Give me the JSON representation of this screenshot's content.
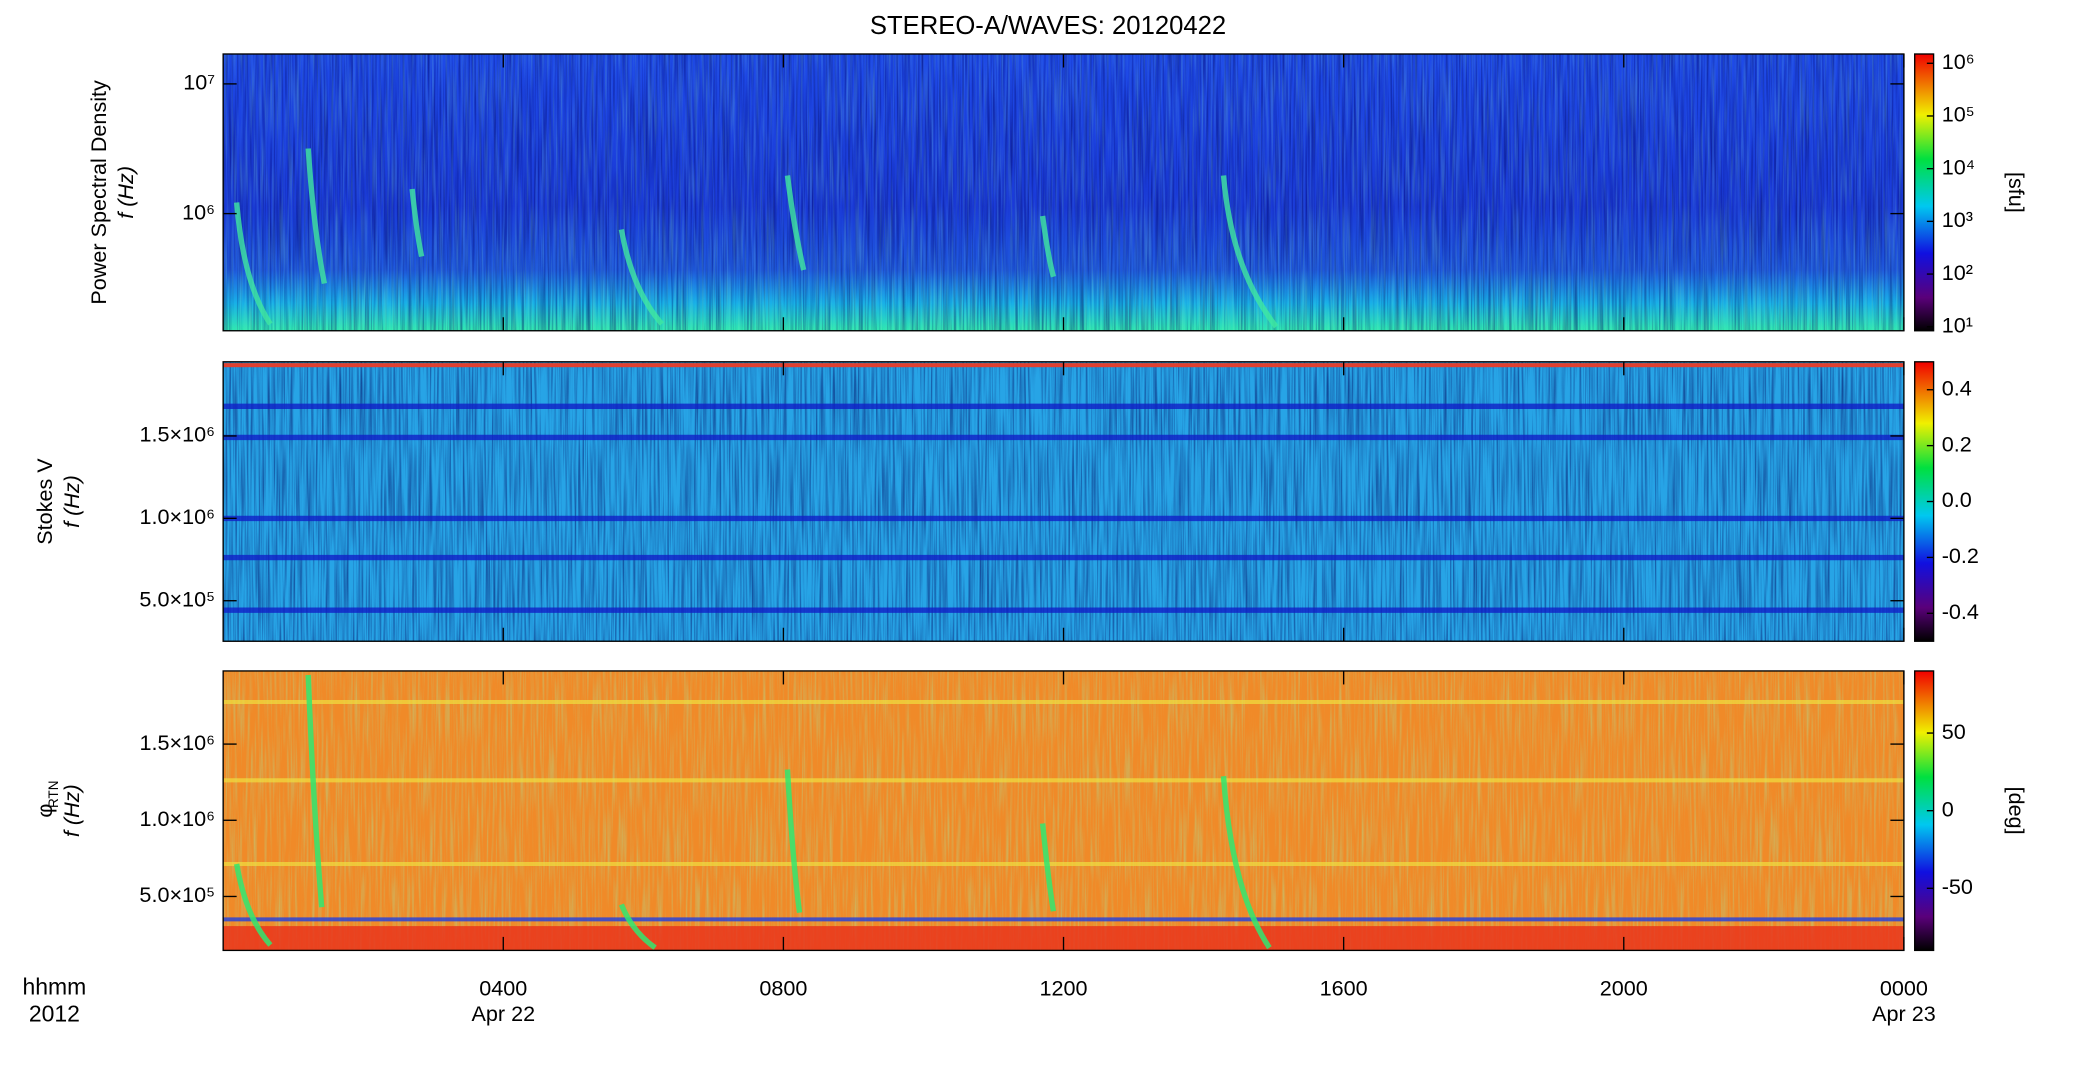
{
  "chart_data": [
    {
      "type": "spectrogram",
      "title": "STEREO-A/WAVES: 20120422",
      "y_label": "Power Spectral Density",
      "y_label_2": "f (Hz)",
      "log_y": true,
      "ylim": [
        125000,
        17000000
      ],
      "yticks": [
        {
          "value": 1000000,
          "label": "10⁶"
        },
        {
          "value": 10000000,
          "label": "10⁷"
        }
      ],
      "colorbar": {
        "log": true,
        "lim": [
          8.4,
          1500000
        ],
        "label": "[sfu]",
        "ticks": [
          {
            "value": 10,
            "label": "10¹"
          },
          {
            "value": 100,
            "label": "10²"
          },
          {
            "value": 1000,
            "label": "10³"
          },
          {
            "value": 10000,
            "label": "10⁴"
          },
          {
            "value": 100000,
            "label": "10⁵"
          },
          {
            "value": 1000000,
            "label": "10⁶"
          }
        ]
      }
    },
    {
      "type": "spectrogram",
      "y_label": "Stokes V",
      "y_label_2": "f (Hz)",
      "log_y": false,
      "ylim": [
        254000,
        1950000
      ],
      "yticks": [
        {
          "value": 500000,
          "label": "5.0×10⁵"
        },
        {
          "value": 1000000,
          "label": "1.0×10⁶"
        },
        {
          "value": 1500000,
          "label": "1.5×10⁶"
        }
      ],
      "colorbar": {
        "log": false,
        "lim": [
          -0.5,
          0.5
        ],
        "ticks": [
          {
            "value": -0.4,
            "label": "-0.4"
          },
          {
            "value": -0.2,
            "label": "-0.2"
          },
          {
            "value": 0,
            "label": "0.0"
          },
          {
            "value": 0.2,
            "label": "0.2"
          },
          {
            "value": 0.4,
            "label": "0.4"
          }
        ]
      }
    },
    {
      "type": "spectrogram",
      "y_label": "φ",
      "y_label_sub": "RTN",
      "y_label_2": "f (Hz)",
      "log_y": false,
      "ylim": [
        146000,
        1980000
      ],
      "yticks": [
        {
          "value": 500000,
          "label": "5.0×10⁵"
        },
        {
          "value": 1000000,
          "label": "1.0×10⁶"
        },
        {
          "value": 1500000,
          "label": "1.5×10⁶"
        }
      ],
      "colorbar": {
        "log": false,
        "lim": [
          -90,
          90
        ],
        "label": "[deg]",
        "ticks": [
          -50,
          0,
          50
        ]
      },
      "xlim": [
        0,
        24
      ],
      "xticks": [
        {
          "value": 4,
          "label": "0400"
        },
        {
          "value": 8,
          "label": "0800"
        },
        {
          "value": 12,
          "label": "1200"
        },
        {
          "value": 16,
          "label": "1600"
        },
        {
          "value": 20,
          "label": "2000"
        },
        {
          "value": 24,
          "label": "0000"
        }
      ],
      "x_date_labels": [
        {
          "value": 4,
          "label": "Apr 22"
        },
        {
          "value": 24,
          "label": "Apr 23"
        }
      ],
      "x_label": "hhmm",
      "x_label_2": "2012"
    }
  ]
}
